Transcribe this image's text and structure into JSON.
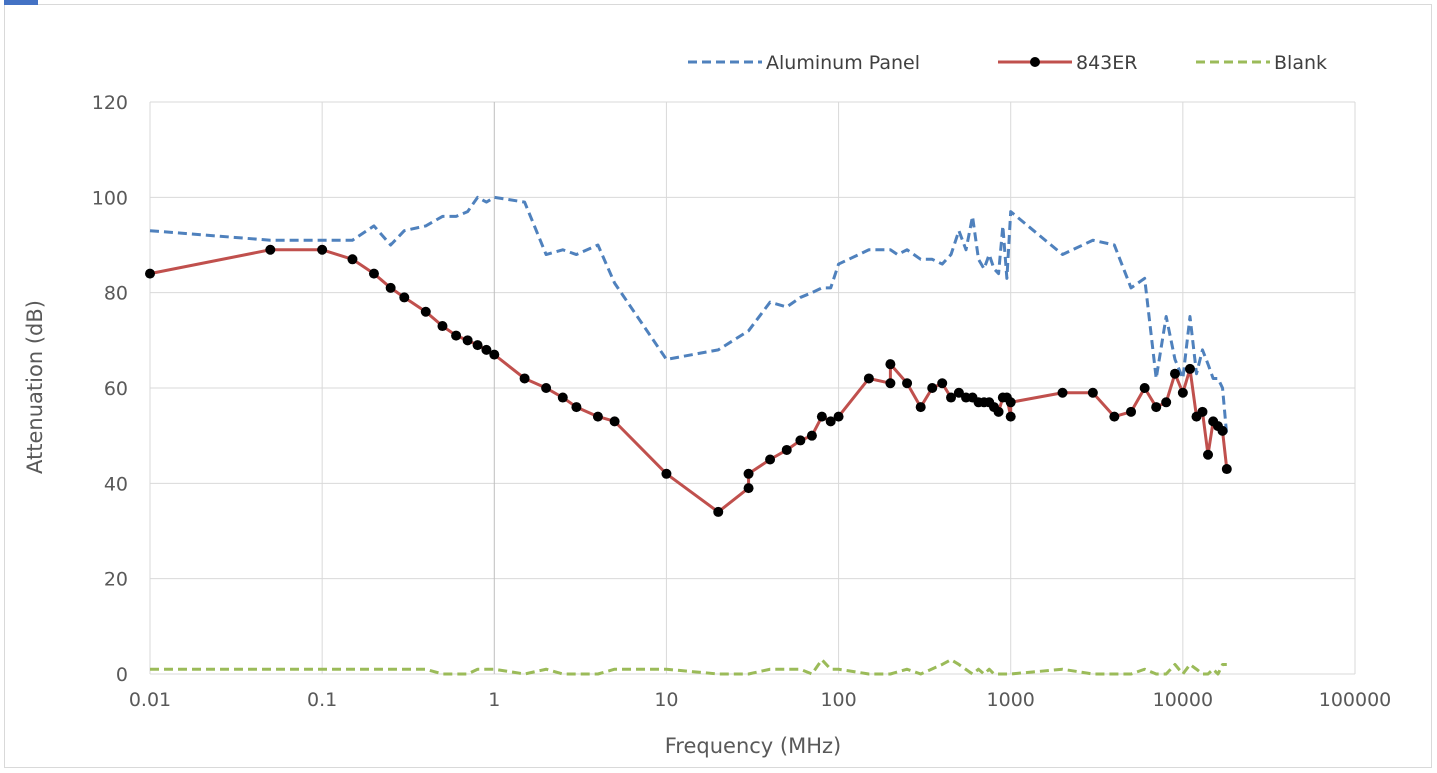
{
  "chart_data": {
    "type": "line",
    "title": "",
    "xlabel": "Frequency (MHz)",
    "ylabel": "Attenuation (dB)",
    "xscale": "log",
    "xlim": [
      0.01,
      100000
    ],
    "ylim": [
      0,
      120
    ],
    "x_ticks": [
      "0.01",
      "0.1",
      "1",
      "10",
      "100",
      "1000",
      "10000",
      "100000"
    ],
    "y_ticks": [
      "0",
      "20",
      "40",
      "60",
      "80",
      "100",
      "120"
    ],
    "grid": "on",
    "legend_position": "top-right",
    "series": [
      {
        "name": "Aluminum Panel",
        "color": "#4f81bd",
        "style": "dashed",
        "markers": false,
        "points": [
          [
            0.01,
            93
          ],
          [
            0.05,
            91
          ],
          [
            0.1,
            91
          ],
          [
            0.15,
            91
          ],
          [
            0.2,
            94
          ],
          [
            0.25,
            90
          ],
          [
            0.3,
            93
          ],
          [
            0.4,
            94
          ],
          [
            0.5,
            96
          ],
          [
            0.6,
            96
          ],
          [
            0.7,
            97
          ],
          [
            0.8,
            100
          ],
          [
            0.9,
            99
          ],
          [
            1,
            100
          ],
          [
            1.5,
            99
          ],
          [
            2,
            88
          ],
          [
            2.5,
            89
          ],
          [
            3,
            88
          ],
          [
            4,
            90
          ],
          [
            5,
            82
          ],
          [
            10,
            66
          ],
          [
            20,
            68
          ],
          [
            30,
            72
          ],
          [
            40,
            78
          ],
          [
            50,
            77
          ],
          [
            60,
            79
          ],
          [
            70,
            80
          ],
          [
            80,
            81
          ],
          [
            90,
            81
          ],
          [
            100,
            86
          ],
          [
            150,
            89
          ],
          [
            200,
            89
          ],
          [
            220,
            88
          ],
          [
            250,
            89
          ],
          [
            300,
            87
          ],
          [
            350,
            87
          ],
          [
            400,
            86
          ],
          [
            450,
            88
          ],
          [
            500,
            93
          ],
          [
            550,
            89
          ],
          [
            600,
            96
          ],
          [
            650,
            87
          ],
          [
            700,
            85
          ],
          [
            750,
            88
          ],
          [
            800,
            85
          ],
          [
            850,
            84
          ],
          [
            900,
            94
          ],
          [
            950,
            83
          ],
          [
            1000,
            97
          ],
          [
            2000,
            88
          ],
          [
            3000,
            91
          ],
          [
            4000,
            90
          ],
          [
            5000,
            81
          ],
          [
            6000,
            83
          ],
          [
            7000,
            62
          ],
          [
            8000,
            75
          ],
          [
            9000,
            66
          ],
          [
            10000,
            62
          ],
          [
            11000,
            75
          ],
          [
            12000,
            63
          ],
          [
            13000,
            68
          ],
          [
            14000,
            65
          ],
          [
            15000,
            62
          ],
          [
            16000,
            62
          ],
          [
            17000,
            60
          ],
          [
            18000,
            50
          ]
        ]
      },
      {
        "name": "843ER",
        "color": "#c0504d",
        "style": "solid",
        "markers": true,
        "marker_color": "#000000",
        "points": [
          [
            0.01,
            84
          ],
          [
            0.05,
            89
          ],
          [
            0.1,
            89
          ],
          [
            0.15,
            87
          ],
          [
            0.2,
            84
          ],
          [
            0.25,
            81
          ],
          [
            0.3,
            79
          ],
          [
            0.4,
            76
          ],
          [
            0.5,
            73
          ],
          [
            0.6,
            71
          ],
          [
            0.7,
            70
          ],
          [
            0.8,
            69
          ],
          [
            0.9,
            68
          ],
          [
            1,
            67
          ],
          [
            1.5,
            62
          ],
          [
            2,
            60
          ],
          [
            2.5,
            58
          ],
          [
            3,
            56
          ],
          [
            4,
            54
          ],
          [
            5,
            53
          ],
          [
            10,
            42
          ],
          [
            20,
            34
          ],
          [
            30,
            39
          ],
          [
            30,
            42
          ],
          [
            40,
            45
          ],
          [
            50,
            47
          ],
          [
            60,
            49
          ],
          [
            70,
            50
          ],
          [
            80,
            54
          ],
          [
            90,
            53
          ],
          [
            100,
            54
          ],
          [
            150,
            62
          ],
          [
            200,
            61
          ],
          [
            200,
            65
          ],
          [
            250,
            61
          ],
          [
            300,
            56
          ],
          [
            350,
            60
          ],
          [
            400,
            61
          ],
          [
            450,
            58
          ],
          [
            500,
            59
          ],
          [
            550,
            58
          ],
          [
            600,
            58
          ],
          [
            650,
            57
          ],
          [
            700,
            57
          ],
          [
            750,
            57
          ],
          [
            800,
            56
          ],
          [
            850,
            55
          ],
          [
            900,
            58
          ],
          [
            950,
            58
          ],
          [
            1000,
            54
          ],
          [
            1000,
            57
          ],
          [
            2000,
            59
          ],
          [
            3000,
            59
          ],
          [
            4000,
            54
          ],
          [
            5000,
            55
          ],
          [
            6000,
            60
          ],
          [
            7000,
            56
          ],
          [
            8000,
            57
          ],
          [
            9000,
            63
          ],
          [
            10000,
            59
          ],
          [
            11000,
            64
          ],
          [
            12000,
            54
          ],
          [
            13000,
            55
          ],
          [
            14000,
            46
          ],
          [
            15000,
            53
          ],
          [
            16000,
            52
          ],
          [
            17000,
            51
          ],
          [
            18000,
            43
          ]
        ]
      },
      {
        "name": "Blank",
        "color": "#9bbb59",
        "style": "dashed",
        "markers": false,
        "points": [
          [
            0.01,
            1
          ],
          [
            0.05,
            1
          ],
          [
            0.1,
            1
          ],
          [
            0.2,
            1
          ],
          [
            0.3,
            1
          ],
          [
            0.4,
            1
          ],
          [
            0.5,
            0
          ],
          [
            0.6,
            0
          ],
          [
            0.7,
            0
          ],
          [
            0.8,
            1
          ],
          [
            0.9,
            1
          ],
          [
            1,
            1
          ],
          [
            1.5,
            0
          ],
          [
            2,
            1
          ],
          [
            2.5,
            0
          ],
          [
            3,
            0
          ],
          [
            4,
            0
          ],
          [
            5,
            1
          ],
          [
            10,
            1
          ],
          [
            20,
            0
          ],
          [
            30,
            0
          ],
          [
            40,
            1
          ],
          [
            50,
            1
          ],
          [
            60,
            1
          ],
          [
            70,
            0
          ],
          [
            80,
            3
          ],
          [
            90,
            1
          ],
          [
            100,
            1
          ],
          [
            150,
            0
          ],
          [
            200,
            0
          ],
          [
            250,
            1
          ],
          [
            300,
            0
          ],
          [
            400,
            2
          ],
          [
            450,
            3
          ],
          [
            500,
            2
          ],
          [
            600,
            0
          ],
          [
            650,
            1
          ],
          [
            700,
            0
          ],
          [
            750,
            1
          ],
          [
            800,
            0
          ],
          [
            900,
            0
          ],
          [
            1000,
            0
          ],
          [
            2000,
            1
          ],
          [
            3000,
            0
          ],
          [
            4000,
            0
          ],
          [
            5000,
            0
          ],
          [
            6000,
            1
          ],
          [
            7000,
            0
          ],
          [
            8000,
            0
          ],
          [
            9000,
            2
          ],
          [
            10000,
            0
          ],
          [
            11000,
            2
          ],
          [
            12000,
            1
          ],
          [
            13000,
            0
          ],
          [
            14000,
            0
          ],
          [
            15000,
            1
          ],
          [
            16000,
            0
          ],
          [
            17000,
            2
          ],
          [
            18000,
            2
          ]
        ]
      }
    ]
  }
}
